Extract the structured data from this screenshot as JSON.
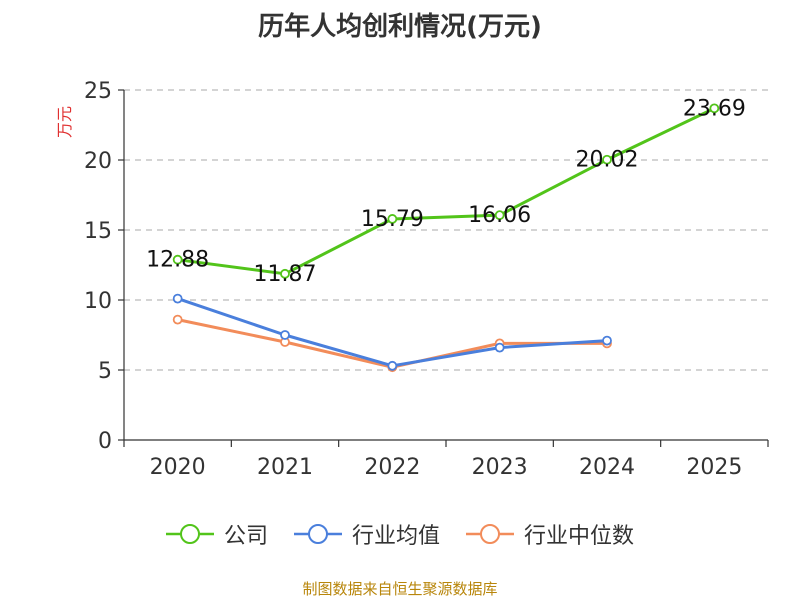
{
  "chart_data": {
    "type": "line",
    "title": "历年人均创利情况(万元)",
    "ylabel": "万元",
    "xlabel": "",
    "ylim": [
      0,
      25
    ],
    "yticks": [
      0,
      5,
      10,
      15,
      20,
      25
    ],
    "categories": [
      "2020",
      "2021",
      "2022",
      "2023",
      "2024",
      "2025"
    ],
    "legend_position": "bottom",
    "grid": true,
    "series": [
      {
        "name": "公司",
        "color": "#52c41a",
        "values": [
          12.88,
          11.87,
          15.79,
          16.06,
          20.02,
          23.69
        ],
        "labels": [
          "12.88",
          "11.87",
          "15.79",
          "16.06",
          "20.02",
          "23.69"
        ]
      },
      {
        "name": "行业均值",
        "color": "#4a7fdc",
        "values": [
          10.1,
          7.5,
          5.3,
          6.6,
          7.1,
          null
        ]
      },
      {
        "name": "行业中位数",
        "color": "#f28c5a",
        "values": [
          8.6,
          7.0,
          5.2,
          6.9,
          6.9,
          null
        ]
      }
    ]
  },
  "source_note": "制图数据来自恒生聚源数据库"
}
